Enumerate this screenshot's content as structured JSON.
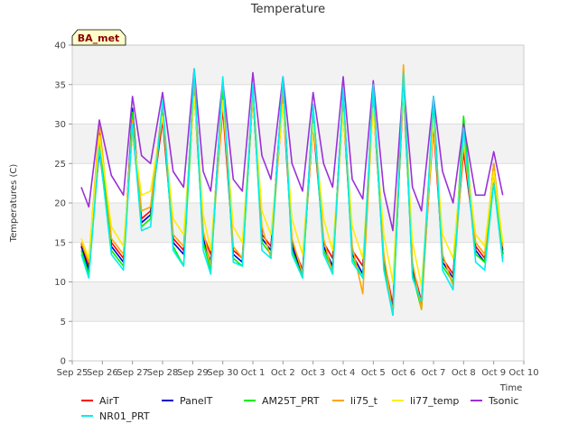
{
  "chart_data": {
    "type": "line",
    "title": "Temperature",
    "xlabel": "Time",
    "ylabel": "Temperatures (C)",
    "badge": "BA_met",
    "ylim": [
      0,
      40
    ],
    "yticks": [
      0,
      5,
      10,
      15,
      20,
      25,
      30,
      35,
      40
    ],
    "xlim": [
      0,
      15
    ],
    "xtick_labels": [
      "Sep 25",
      "Sep 26",
      "Sep 27",
      "Sep 28",
      "Sep 29",
      "Sep 30",
      "Oct 1",
      "Oct 2",
      "Oct 3",
      "Oct 4",
      "Oct 5",
      "Oct 6",
      "Oct 7",
      "Oct 8",
      "Oct 9",
      "Oct 10"
    ],
    "grid": true,
    "legend_position": "bottom",
    "colors": {
      "AirT": "#ff0000",
      "PanelT": "#0000cc",
      "AM25T_PRT": "#00ee00",
      "li75_t": "#ffa500",
      "li77_temp": "#ffee00",
      "Tsonic": "#9b30d9",
      "NR01_PRT": "#00eeee"
    },
    "series": [
      {
        "name": "AirT",
        "x": [
          0.3,
          0.55,
          0.9,
          1.3,
          1.7,
          2.0,
          2.3,
          2.6,
          3.0,
          3.35,
          3.7,
          4.05,
          4.35,
          4.6,
          5.0,
          5.35,
          5.65,
          6.0,
          6.3,
          6.6,
          7.0,
          7.3,
          7.65,
          8.0,
          8.35,
          8.65,
          9.0,
          9.3,
          9.65,
          10.0,
          10.35,
          10.65,
          11.0,
          11.3,
          11.6,
          12.0,
          12.3,
          12.65,
          13.0,
          13.4,
          13.7,
          14.0,
          14.3
        ],
        "values": [
          14.8,
          12.0,
          26.5,
          15.0,
          13.0,
          29.5,
          18.0,
          19.0,
          30.5,
          15.5,
          14.0,
          34.0,
          16.0,
          13.5,
          32.0,
          14.0,
          13.0,
          33.5,
          16.0,
          14.5,
          33.0,
          15.0,
          11.5,
          30.0,
          15.0,
          13.0,
          32.0,
          14.0,
          12.0,
          32.5,
          13.0,
          7.0,
          34.5,
          12.0,
          7.5,
          30.0,
          13.0,
          11.0,
          26.5,
          14.5,
          13.0,
          24.0,
          14.0
        ]
      },
      {
        "name": "PanelT",
        "x": [
          0.3,
          0.55,
          0.9,
          1.3,
          1.7,
          2.0,
          2.3,
          2.6,
          3.0,
          3.35,
          3.7,
          4.05,
          4.35,
          4.6,
          5.0,
          5.35,
          5.65,
          6.0,
          6.3,
          6.6,
          7.0,
          7.3,
          7.65,
          8.0,
          8.35,
          8.65,
          9.0,
          9.3,
          9.65,
          10.0,
          10.35,
          10.65,
          11.0,
          11.3,
          11.6,
          12.0,
          12.3,
          12.65,
          13.0,
          13.4,
          13.7,
          14.0,
          14.3
        ],
        "values": [
          14.5,
          11.5,
          29.0,
          14.5,
          12.5,
          32.0,
          17.5,
          18.5,
          32.5,
          15.0,
          13.5,
          36.0,
          15.5,
          12.5,
          35.0,
          13.5,
          12.5,
          34.5,
          15.5,
          14.0,
          35.5,
          14.5,
          11.0,
          32.0,
          14.5,
          12.0,
          34.0,
          13.5,
          11.0,
          34.0,
          12.5,
          6.5,
          36.0,
          11.5,
          7.0,
          33.0,
          12.5,
          10.5,
          30.0,
          14.0,
          12.5,
          25.0,
          13.5
        ]
      },
      {
        "name": "AM25T_PRT",
        "x": [
          0.3,
          0.55,
          0.9,
          1.3,
          1.7,
          2.0,
          2.3,
          2.6,
          3.0,
          3.35,
          3.7,
          4.05,
          4.35,
          4.6,
          5.0,
          5.35,
          5.65,
          6.0,
          6.3,
          6.6,
          7.0,
          7.3,
          7.65,
          8.0,
          8.35,
          8.65,
          9.0,
          9.3,
          9.65,
          10.0,
          10.35,
          10.65,
          11.0,
          11.3,
          11.6,
          12.0,
          12.3,
          12.65,
          13.0,
          13.4,
          13.7,
          14.0,
          14.3
        ],
        "values": [
          14.0,
          11.0,
          28.0,
          14.0,
          12.0,
          31.5,
          17.0,
          18.0,
          32.0,
          14.5,
          12.0,
          35.0,
          15.0,
          11.5,
          34.5,
          13.0,
          12.0,
          34.0,
          15.0,
          13.5,
          35.0,
          14.0,
          10.5,
          31.5,
          14.0,
          11.5,
          33.5,
          13.0,
          10.5,
          33.5,
          12.0,
          5.8,
          35.5,
          11.0,
          6.5,
          33.0,
          12.0,
          10.0,
          31.0,
          13.5,
          12.5,
          24.5,
          13.0
        ]
      },
      {
        "name": "li75_t",
        "x": [
          0.3,
          0.55,
          0.9,
          1.3,
          1.7,
          2.0,
          2.3,
          2.6,
          3.0,
          3.35,
          3.7,
          4.05,
          4.35,
          4.6,
          5.0,
          5.35,
          5.65,
          6.0,
          6.3,
          6.6,
          7.0,
          7.3,
          7.65,
          8.0,
          8.35,
          8.65,
          9.0,
          9.3,
          9.65,
          10.0,
          10.35,
          10.65,
          11.0,
          11.3,
          11.6,
          12.0,
          12.3,
          12.65,
          13.0,
          13.4,
          13.7,
          14.0,
          14.3
        ],
        "values": [
          15.0,
          12.5,
          30.0,
          15.5,
          13.5,
          30.5,
          19.0,
          19.5,
          32.5,
          16.0,
          14.5,
          35.5,
          16.5,
          12.0,
          33.0,
          14.5,
          13.0,
          34.5,
          17.0,
          13.0,
          34.0,
          15.5,
          11.0,
          31.0,
          15.5,
          11.0,
          33.0,
          14.5,
          8.5,
          33.0,
          13.5,
          6.0,
          37.5,
          12.5,
          6.5,
          31.0,
          13.5,
          9.5,
          27.5,
          15.0,
          13.5,
          25.0,
          14.5
        ]
      },
      {
        "name": "li77_temp",
        "x": [
          0.3,
          0.55,
          0.9,
          1.3,
          1.7,
          2.0,
          2.3,
          2.6,
          3.0,
          3.35,
          3.7,
          4.05,
          4.35,
          4.6,
          5.0,
          5.35,
          5.65,
          6.0,
          6.3,
          6.6,
          7.0,
          7.3,
          7.65,
          8.0,
          8.35,
          8.65,
          9.0,
          9.3,
          9.65,
          10.0,
          10.35,
          10.65,
          11.0,
          11.3,
          11.6,
          12.0,
          12.3,
          12.65,
          13.0,
          13.4,
          13.7,
          14.0,
          14.3
        ],
        "values": [
          15.5,
          13.0,
          28.5,
          17.0,
          14.5,
          29.0,
          21.0,
          21.5,
          31.0,
          18.0,
          16.0,
          33.5,
          18.5,
          14.0,
          33.0,
          17.0,
          15.0,
          33.5,
          19.0,
          16.0,
          32.5,
          18.0,
          13.5,
          30.0,
          18.0,
          14.0,
          31.5,
          17.0,
          13.0,
          32.0,
          16.0,
          10.0,
          34.5,
          15.0,
          9.5,
          30.5,
          16.0,
          13.0,
          28.0,
          16.0,
          14.5,
          24.0,
          15.0
        ]
      },
      {
        "name": "Tsonic",
        "x": [
          0.3,
          0.55,
          0.9,
          1.3,
          1.7,
          2.0,
          2.3,
          2.6,
          3.0,
          3.35,
          3.7,
          4.05,
          4.35,
          4.6,
          5.0,
          5.35,
          5.65,
          6.0,
          6.3,
          6.6,
          7.0,
          7.3,
          7.65,
          8.0,
          8.35,
          8.65,
          9.0,
          9.3,
          9.65,
          10.0,
          10.35,
          10.65,
          11.0,
          11.3,
          11.6,
          12.0,
          12.3,
          12.65,
          13.0,
          13.4,
          13.7,
          14.0,
          14.3
        ],
        "values": [
          22.0,
          19.5,
          30.5,
          23.5,
          21.0,
          33.5,
          26.0,
          25.0,
          34.0,
          24.0,
          22.0,
          37.0,
          24.0,
          21.5,
          35.5,
          23.0,
          21.5,
          36.5,
          26.0,
          23.0,
          36.0,
          25.0,
          21.5,
          34.0,
          25.0,
          22.0,
          36.0,
          23.0,
          20.5,
          35.5,
          21.5,
          16.5,
          35.5,
          22.0,
          19.0,
          33.5,
          24.0,
          20.0,
          30.0,
          21.0,
          21.0,
          26.5,
          21.0
        ]
      },
      {
        "name": "NR01_PRT",
        "x": [
          0.3,
          0.55,
          0.9,
          1.3,
          1.7,
          2.0,
          2.3,
          2.6,
          3.0,
          3.35,
          3.7,
          4.05,
          4.35,
          4.6,
          5.0,
          5.35,
          5.65,
          6.0,
          6.3,
          6.6,
          7.0,
          7.3,
          7.65,
          8.0,
          8.35,
          8.65,
          9.0,
          9.3,
          9.65,
          10.0,
          10.35,
          10.65,
          11.0,
          11.3,
          11.6,
          12.0,
          12.3,
          12.65,
          13.0,
          13.4,
          13.7,
          14.0,
          14.3
        ],
        "values": [
          13.5,
          10.5,
          27.0,
          13.5,
          11.5,
          30.0,
          16.5,
          17.0,
          33.0,
          14.0,
          12.0,
          37.0,
          14.0,
          11.0,
          36.0,
          12.5,
          12.0,
          35.0,
          14.0,
          13.0,
          36.0,
          13.5,
          10.5,
          32.5,
          13.5,
          11.0,
          34.5,
          12.5,
          10.5,
          35.0,
          11.5,
          5.8,
          36.5,
          10.5,
          7.5,
          33.5,
          11.5,
          9.0,
          29.5,
          12.5,
          11.5,
          22.5,
          12.5
        ]
      }
    ]
  }
}
